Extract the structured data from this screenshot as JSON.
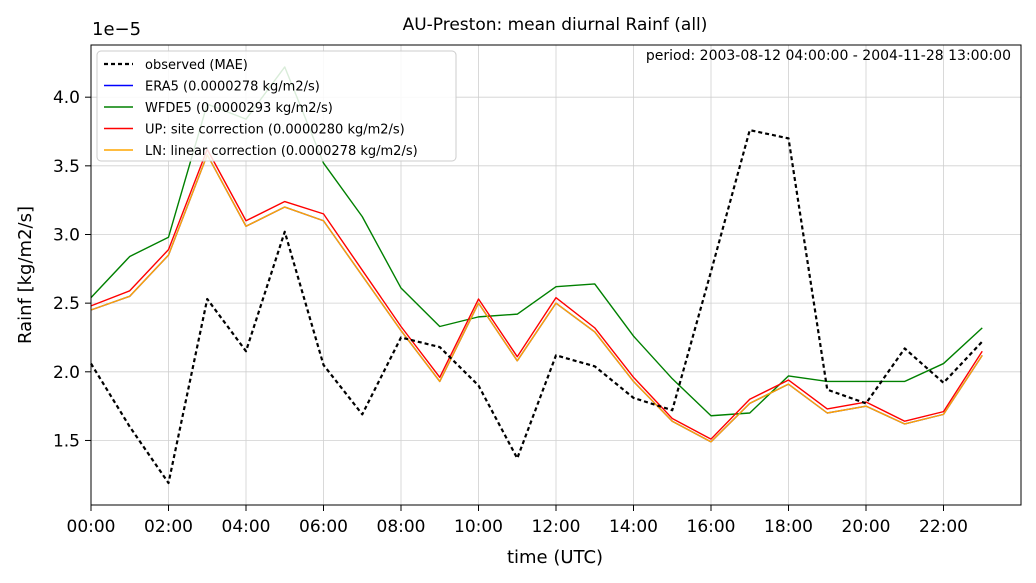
{
  "chart_data": {
    "type": "line",
    "title": "AU-Preston: mean diurnal Rainf (all)",
    "annotation": "period: 2003-08-12 04:00:00 - 2004-11-28 13:00:00",
    "xlabel": "time (UTC)",
    "ylabel": "Rainf [kg/m2/s]",
    "y_offset_label": "1e−5",
    "x": [
      0,
      1,
      2,
      3,
      4,
      5,
      6,
      7,
      8,
      9,
      10,
      11,
      12,
      13,
      14,
      15,
      16,
      17,
      18,
      19,
      20,
      21,
      22,
      23
    ],
    "xlim": [
      0,
      24
    ],
    "ylim": [
      1.03,
      4.38
    ],
    "y_scale": 1e-05,
    "x_ticks": [
      0,
      2,
      4,
      6,
      8,
      10,
      12,
      14,
      16,
      18,
      20,
      22
    ],
    "x_tick_labels": [
      "00:00",
      "02:00",
      "04:00",
      "06:00",
      "08:00",
      "10:00",
      "12:00",
      "14:00",
      "16:00",
      "18:00",
      "20:00",
      "22:00"
    ],
    "y_ticks": [
      1.5,
      2.0,
      2.5,
      3.0,
      3.5,
      4.0
    ],
    "y_tick_labels": [
      "1.5",
      "2.0",
      "2.5",
      "3.0",
      "3.5",
      "4.0"
    ],
    "grid": true,
    "legend_position": "upper-left",
    "series": [
      {
        "name": "observed (MAE)",
        "color": "#000000",
        "style": "dotted",
        "values": [
          2.06,
          1.6,
          1.19,
          2.53,
          2.15,
          3.02,
          2.05,
          1.69,
          2.25,
          2.18,
          1.9,
          1.37,
          2.12,
          2.04,
          1.81,
          1.72,
          2.73,
          3.76,
          3.7,
          1.87,
          1.77,
          2.17,
          1.92,
          2.22
        ]
      },
      {
        "name": "ERA5 (0.0000278 kg/m2/s)",
        "color": "#0000ff",
        "style": "solid",
        "values": [
          2.45,
          2.55,
          2.85,
          3.58,
          3.06,
          3.2,
          3.1,
          2.7,
          2.3,
          1.93,
          2.5,
          2.08,
          2.5,
          2.29,
          1.93,
          1.64,
          1.49,
          1.77,
          1.91,
          1.7,
          1.75,
          1.62,
          1.69,
          2.12
        ]
      },
      {
        "name": "WFDE5 (0.0000293 kg/m2/s)",
        "color": "#008000",
        "style": "solid",
        "values": [
          2.54,
          2.84,
          2.98,
          3.95,
          3.84,
          4.22,
          3.52,
          3.13,
          2.61,
          2.33,
          2.4,
          2.42,
          2.62,
          2.64,
          2.26,
          1.95,
          1.68,
          1.7,
          1.97,
          1.93,
          1.93,
          1.93,
          2.06,
          2.32
        ]
      },
      {
        "name": "UP: site correction (0.0000280 kg/m2/s)",
        "color": "#ff0000",
        "style": "solid",
        "values": [
          2.48,
          2.59,
          2.89,
          3.62,
          3.1,
          3.24,
          3.15,
          2.74,
          2.33,
          1.96,
          2.53,
          2.11,
          2.54,
          2.32,
          1.96,
          1.66,
          1.51,
          1.8,
          1.94,
          1.73,
          1.78,
          1.64,
          1.71,
          2.15
        ]
      },
      {
        "name": "LN: linear correction (0.0000278 kg/m2/s)",
        "color": "#ffa500",
        "style": "solid",
        "values": [
          2.45,
          2.55,
          2.85,
          3.58,
          3.06,
          3.2,
          3.1,
          2.7,
          2.3,
          1.93,
          2.5,
          2.08,
          2.5,
          2.29,
          1.93,
          1.64,
          1.49,
          1.77,
          1.91,
          1.7,
          1.75,
          1.62,
          1.69,
          2.12
        ]
      }
    ]
  }
}
